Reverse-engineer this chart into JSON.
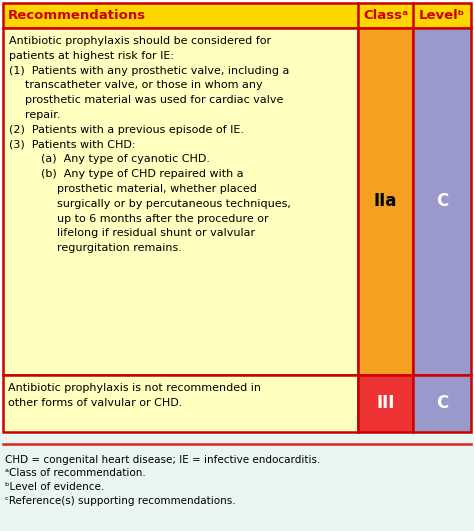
{
  "header": [
    "Recommendations",
    "Classᵃ",
    "Levelᵇ"
  ],
  "header_bg": "#FFD700",
  "header_text_color": "#CC0000",
  "row1_bg": "#FFFFC0",
  "orange_bg": "#F5A020",
  "blue_bg": "#9999CC",
  "red_bg": "#EE3333",
  "footnote_bg": "#E8F5F0",
  "row1_text_lines": [
    [
      "Antibiotic prophylaxis should be considered for",
      0
    ],
    [
      "patients at highest risk for IE:",
      0
    ],
    [
      "(1)  Patients with any prosthetic valve, including a",
      0
    ],
    [
      "transcatheter valve, or those in whom any",
      1
    ],
    [
      "prosthetic material was used for cardiac valve",
      1
    ],
    [
      "repair.",
      1
    ],
    [
      "(2)  Patients with a previous episode of IE.",
      0
    ],
    [
      "(3)  Patients with CHD:",
      0
    ],
    [
      "(a)  Any type of cyanotic CHD.",
      2
    ],
    [
      "(b)  Any type of CHD repaired with a",
      2
    ],
    [
      "prosthetic material, whether placed",
      3
    ],
    [
      "surgically or by percutaneous techniques,",
      3
    ],
    [
      "up to 6 months after the procedure or",
      3
    ],
    [
      "lifelong if residual shunt or valvular",
      3
    ],
    [
      "regurgitation remains.",
      3
    ]
  ],
  "row1_class": "IIa",
  "row1_level": "C",
  "row2_text_lines": [
    "Antibiotic prophylaxis is not recommended in",
    "other forms of valvular or CHD."
  ],
  "row2_class": "III",
  "row2_level": "C",
  "footnotes": [
    "CHD = congenital heart disease; IE = infective endocarditis.",
    "ᵃClass of recommendation.",
    "ᵇLevel of evidence.",
    "ᶜReference(s) supporting recommendations."
  ],
  "border_color": "#CC0000",
  "sep_color": "#DD2222",
  "text_color": "#000000",
  "white_text": "#FFFFFF",
  "indent_levels": [
    6,
    22,
    38,
    54
  ]
}
